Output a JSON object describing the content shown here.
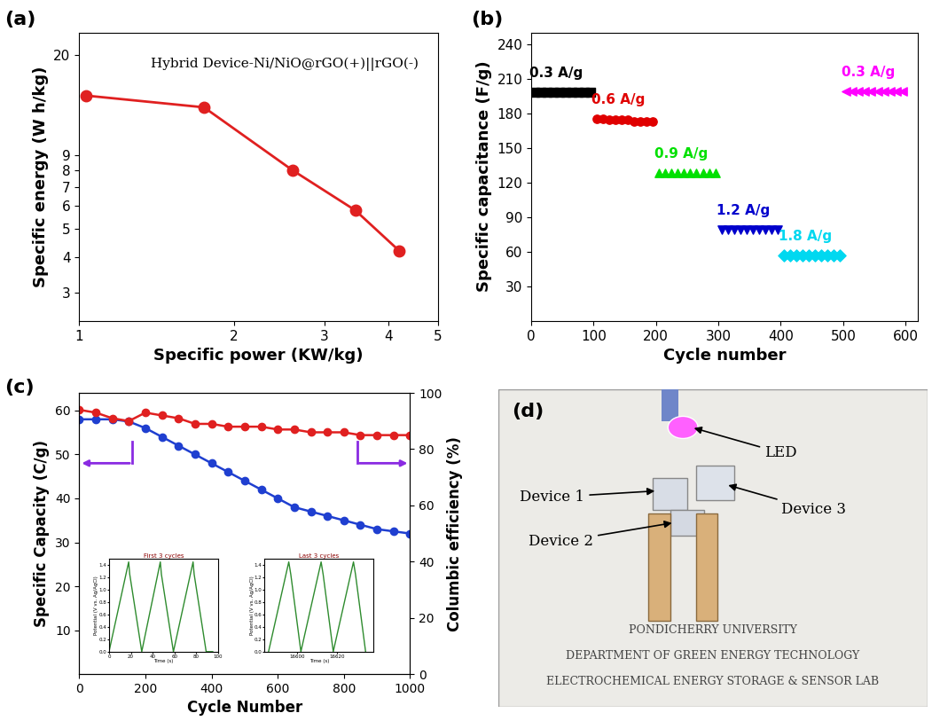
{
  "chart_data": [
    {
      "type": "line",
      "panel_label": "(a)",
      "annotation": "Hybrid Device-Ni/NiO@rGO(+)||rGO(-)",
      "x_label": "Specific power (KW/kg)",
      "y_label": "Specific energy (W h/kg)",
      "log": true,
      "x": [
        1.03,
        1.75,
        2.6,
        3.45,
        4.2
      ],
      "values": [
        14.5,
        13.2,
        8.0,
        5.8,
        4.2
      ],
      "color": "#e02020",
      "marker": "circle",
      "line_style": "solid",
      "xlim": [
        1,
        5
      ],
      "ylim": [
        2.4,
        24
      ],
      "xticks": [
        1,
        2,
        3,
        4,
        5
      ],
      "yticks": [
        3,
        4,
        5,
        6,
        7,
        8,
        9,
        20
      ]
    },
    {
      "type": "scatter",
      "panel_label": "(b)",
      "x_label": "Cycle number",
      "y_label": "Specific capacitance (F/g)",
      "xlim": [
        0,
        620
      ],
      "ylim": [
        0,
        250
      ],
      "xticks": [
        0,
        100,
        200,
        300,
        400,
        500,
        600
      ],
      "yticks": [
        30,
        60,
        90,
        120,
        150,
        180,
        210,
        240
      ],
      "series": [
        {
          "name": "0.3 A/g",
          "color": "#000000",
          "marker": "square",
          "x": [
            5,
            15,
            25,
            35,
            45,
            55,
            65,
            75,
            85,
            95
          ],
          "values": [
            198,
            198,
            198,
            198,
            198,
            198,
            198,
            198,
            198,
            198
          ]
        },
        {
          "name": "0.6 A/g",
          "color": "#e00000",
          "marker": "circle",
          "x": [
            105,
            115,
            125,
            135,
            145,
            155,
            165,
            175,
            185,
            195
          ],
          "values": [
            175,
            175,
            174,
            174,
            174,
            174,
            173,
            173,
            173,
            173
          ]
        },
        {
          "name": "0.9 A/g",
          "color": "#00e000",
          "marker": "triangle_up",
          "x": [
            205,
            215,
            225,
            235,
            245,
            255,
            265,
            275,
            285,
            295
          ],
          "values": [
            128,
            128,
            128,
            128,
            128,
            128,
            128,
            128,
            128,
            128
          ]
        },
        {
          "name": "1.2 A/g",
          "color": "#0000cc",
          "marker": "triangle_down",
          "x": [
            305,
            315,
            325,
            335,
            345,
            355,
            365,
            375,
            385,
            395
          ],
          "values": [
            79,
            79,
            79,
            79,
            79,
            79,
            79,
            79,
            79,
            79
          ]
        },
        {
          "name": "1.8 A/g",
          "color": "#00d8f0",
          "marker": "diamond",
          "x": [
            405,
            415,
            425,
            435,
            445,
            455,
            465,
            475,
            485,
            495
          ],
          "values": [
            57,
            57,
            57,
            57,
            57,
            57,
            57,
            57,
            57,
            57
          ]
        },
        {
          "name": "0.3 A/g",
          "color": "#ff00ff",
          "marker": "triangle_left",
          "x": [
            505,
            515,
            525,
            535,
            545,
            555,
            565,
            575,
            585,
            595
          ],
          "values": [
            199,
            199,
            199,
            199,
            199,
            199,
            199,
            199,
            199,
            199
          ]
        }
      ]
    },
    {
      "type": "line",
      "panel_label": "(c)",
      "x_label": "Cycle Number",
      "y_label": "Specific Capacity (C/g)",
      "y2_label": "Columbic efficiency (%)",
      "xlim": [
        0,
        1000
      ],
      "ylim": [
        0,
        64
      ],
      "y2lim": [
        0,
        100
      ],
      "xticks": [
        0,
        200,
        400,
        600,
        800,
        1000
      ],
      "yticks": [
        10,
        20,
        30,
        40,
        50,
        60
      ],
      "y2ticks": [
        0,
        20,
        40,
        60,
        80,
        100
      ],
      "x": [
        0,
        50,
        100,
        150,
        200,
        250,
        300,
        350,
        400,
        450,
        500,
        550,
        600,
        650,
        700,
        750,
        800,
        850,
        900,
        950,
        1000
      ],
      "series": [
        {
          "name": "Specific Capacity",
          "color": "#1f3fd0",
          "marker": "circle",
          "values": [
            58,
            58,
            58,
            57.5,
            56,
            54,
            52,
            50,
            48,
            46,
            44,
            42,
            40,
            38,
            37,
            36,
            35,
            34,
            33,
            32.5,
            32
          ]
        },
        {
          "name": "Columbic efficiency",
          "color": "#e02020",
          "marker": "circle",
          "axis": "y2",
          "values": [
            94,
            93,
            91,
            90,
            93,
            92,
            91,
            89,
            89,
            88,
            88,
            88,
            87,
            87,
            86,
            86,
            86,
            85,
            85,
            85,
            85
          ]
        }
      ],
      "insets": [
        {
          "title": "First 3 cycles",
          "x_label": "Time (s)",
          "y_label": "Potential (V vs. Ag/AgCl)",
          "color": "#2e8b2e",
          "x": [
            0,
            18,
            19,
            30,
            47,
            48,
            59,
            77,
            78,
            89,
            95
          ],
          "values": [
            0.0,
            1.45,
            1.25,
            0.0,
            1.45,
            1.25,
            0.0,
            1.45,
            1.25,
            0.0,
            0.0
          ],
          "xlim": [
            0,
            100
          ],
          "ylim": [
            0,
            1.5
          ],
          "xticks": [
            0,
            20,
            40,
            60,
            80,
            100
          ],
          "yticks": [
            0.0,
            0.2,
            0.4,
            0.6,
            0.8,
            1.0,
            1.2,
            1.4
          ]
        },
        {
          "title": "Last 3 cycles",
          "x_label": "Time (s)",
          "y_label": "Potential (V vs. Ag/AgCl)",
          "color": "#2e8b2e",
          "x": [
            16586,
            16596,
            16597,
            16602,
            16612,
            16613,
            16618,
            16628,
            16629,
            16634
          ],
          "values": [
            0.0,
            1.45,
            1.25,
            0.0,
            1.45,
            1.25,
            0.0,
            1.45,
            1.25,
            0.0
          ],
          "xlim": [
            16584,
            16638
          ],
          "ylim": [
            0,
            1.5
          ],
          "xticks": [
            16600,
            16620
          ],
          "yticks": [
            0.0,
            0.2,
            0.4,
            0.6,
            0.8,
            1.0,
            1.2,
            1.4
          ]
        }
      ]
    }
  ],
  "photo": {
    "panel_label": "(d)",
    "labels": [
      "LED",
      "Device 1",
      "Device 3",
      "Device 2"
    ],
    "caption": [
      "PONDICHERRY UNIVERSITY",
      "DEPARTMENT OF GREEN ENERGY TECHNOLOGY",
      "ELECTROCHEMICAL ENERGY STORAGE & SENSOR LAB"
    ]
  }
}
